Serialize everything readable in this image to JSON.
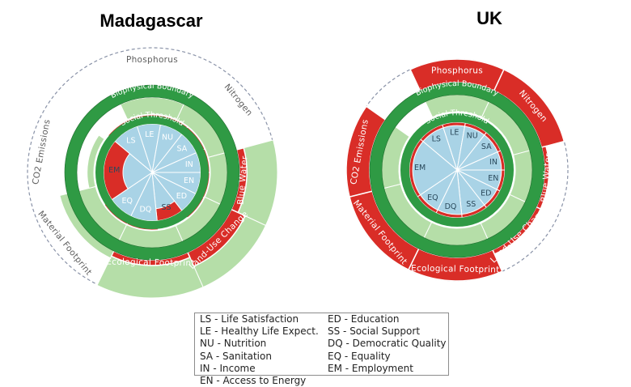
{
  "chart_data": [
    {
      "type": "doughnut-radial-bar",
      "title": "Madagascar",
      "ring_labels": {
        "outer": "Biophysical Boundary",
        "inner": "Social Threshold"
      },
      "social": [
        {
          "code": "LS",
          "value": 1.55
        },
        {
          "code": "LE",
          "value": 1.55
        },
        {
          "code": "NU",
          "value": 1.55
        },
        {
          "code": "SA",
          "value": 1.55
        },
        {
          "code": "IN",
          "value": 1.55
        },
        {
          "code": "EN",
          "value": 1.55
        },
        {
          "code": "ED",
          "value": 1.55
        },
        {
          "code": "SS",
          "value": 0.75
        },
        {
          "code": "DQ",
          "value": 1.55
        },
        {
          "code": "EQ",
          "value": 1.55
        },
        {
          "code": "EM",
          "value": 0.6
        }
      ],
      "biophysical": [
        {
          "name": "Phosphorus",
          "value": 0.25
        },
        {
          "name": "Nitrogen",
          "value": 0.3
        },
        {
          "name": "Blue Water",
          "value": 1.4
        },
        {
          "name": "Land-Use Change",
          "value": 1.82
        },
        {
          "name": "Ecological Footprint",
          "value": 1.3
        },
        {
          "name": "Material Footprint",
          "value": 0.55
        },
        {
          "name": "CO2 Emissions",
          "value": 0.1
        }
      ]
    },
    {
      "type": "doughnut-radial-bar",
      "title": "UK",
      "ring_labels": {
        "outer": "Biophysical Boundary",
        "inner": "Social Threshold"
      },
      "social": [
        {
          "code": "LS",
          "value": 0.93
        },
        {
          "code": "LE",
          "value": 0.93
        },
        {
          "code": "NU",
          "value": 0.93
        },
        {
          "code": "SA",
          "value": 0.93
        },
        {
          "code": "IN",
          "value": 0.93
        },
        {
          "code": "EN",
          "value": 0.93
        },
        {
          "code": "ED",
          "value": 0.93
        },
        {
          "code": "SS",
          "value": 0.93
        },
        {
          "code": "DQ",
          "value": 0.93
        },
        {
          "code": "EQ",
          "value": 0.93
        },
        {
          "code": "EM",
          "value": 0.93
        }
      ],
      "biophysical": [
        {
          "name": "Phosphorus",
          "value": 3.0
        },
        {
          "name": "Nitrogen",
          "value": 3.0
        },
        {
          "name": "Blue Water",
          "value": 1.4
        },
        {
          "name": "Land-Use Change",
          "value": 1.4
        },
        {
          "name": "Ecological Footprint",
          "value": 3.0
        },
        {
          "name": "Material Footprint",
          "value": 3.0
        },
        {
          "name": "CO2 Emissions",
          "value": 3.0
        }
      ]
    }
  ],
  "legend": {
    "items": [
      "LS - Life Satisfaction",
      "LE - Healthy Life Expect.",
      "NU - Nutrition",
      "SA - Sanitation",
      "IN - Income",
      "EN - Access to Energy",
      "ED - Education",
      "SS - Social Support",
      "DQ - Democratic Quality",
      "EQ - Equality",
      "EM - Employment"
    ]
  },
  "colors": {
    "red": "#d92d27",
    "blue": "#a9d3e6",
    "light_green": "#b5dea8",
    "dark_green": "#2f9a44",
    "dashed": "#8a93a8",
    "label_gray": "#5f5f5f"
  }
}
